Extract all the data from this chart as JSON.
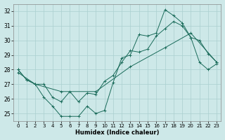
{
  "xlabel": "Humidex (Indice chaleur)",
  "bg_color": "#cde8e8",
  "line_color": "#1a6b5a",
  "grid_color": "#aacfcf",
  "xlim": [
    -0.5,
    23.5
  ],
  "ylim": [
    24.5,
    32.5
  ],
  "xticks": [
    0,
    1,
    2,
    3,
    4,
    5,
    6,
    7,
    8,
    9,
    10,
    11,
    12,
    13,
    14,
    15,
    16,
    17,
    18,
    19,
    20,
    21,
    22,
    23
  ],
  "yticks": [
    25,
    26,
    27,
    28,
    29,
    30,
    31,
    32
  ],
  "line_min_x": [
    0,
    1,
    2,
    3,
    4,
    5,
    6,
    7,
    8,
    9,
    10,
    11,
    12,
    13,
    14,
    15,
    16,
    17,
    18,
    19,
    20,
    21,
    22,
    23
  ],
  "line_min_y": [
    28.0,
    27.3,
    27.0,
    26.1,
    25.5,
    24.8,
    24.8,
    24.8,
    25.5,
    25.0,
    25.2,
    27.1,
    28.8,
    29.0,
    30.4,
    30.3,
    30.5,
    32.1,
    31.7,
    31.2,
    30.2,
    30.0,
    29.1,
    28.5
  ],
  "line_max_x": [
    0,
    1,
    2,
    3,
    4,
    5,
    6,
    7,
    8,
    9,
    10,
    11,
    12,
    13,
    14,
    15,
    16,
    17,
    18,
    19,
    20,
    21,
    22,
    23
  ],
  "line_max_y": [
    28.0,
    27.3,
    27.0,
    27.0,
    26.1,
    25.8,
    26.5,
    25.8,
    26.4,
    26.3,
    27.2,
    27.6,
    28.5,
    29.3,
    29.2,
    29.4,
    30.3,
    30.8,
    31.3,
    31.0,
    30.2,
    28.5,
    28.0,
    28.4
  ],
  "line_mean_x": [
    0,
    2,
    5,
    9,
    13,
    17,
    20,
    23
  ],
  "line_mean_y": [
    27.8,
    27.0,
    26.5,
    26.5,
    28.2,
    29.5,
    30.5,
    28.5
  ],
  "marker": "+"
}
